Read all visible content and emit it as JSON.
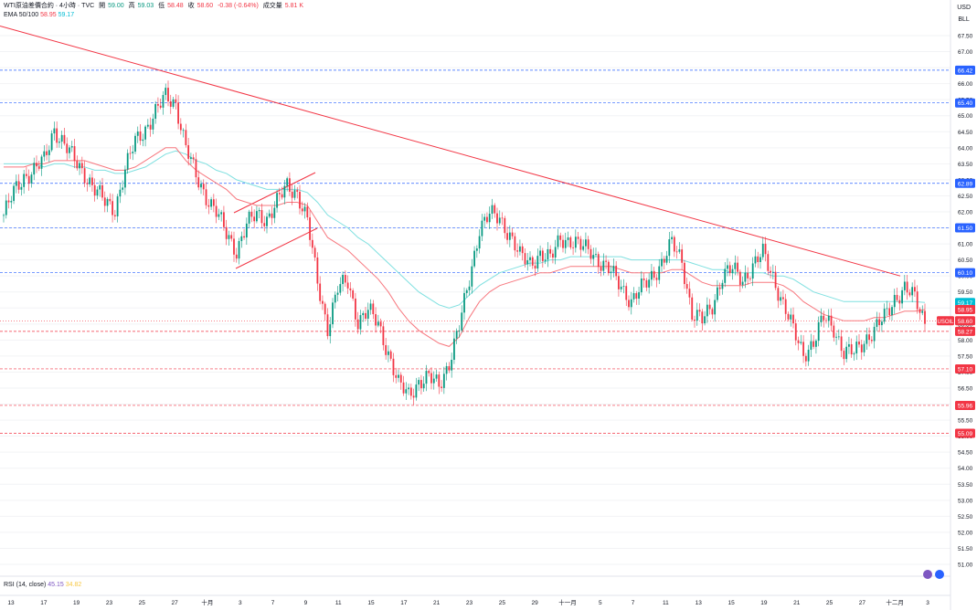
{
  "header": {
    "symbol": "WTI原油差價合約 · 4小時 · TVC",
    "open_label": "開",
    "open_value": "59.00",
    "high_label": "高",
    "high_value": "59.03",
    "low_label": "低",
    "low_value": "58.48",
    "close_label": "收",
    "close_value": "58.60",
    "change": "-0.38 (-0.64%)",
    "volume_label": "成交量",
    "volume_value": "5.81 K"
  },
  "indicator": {
    "name": "EMA 50/100",
    "ema50": "58.95",
    "ema100": "59.17"
  },
  "rsi": {
    "name": "RSI (14, close)",
    "value": "45.15",
    "ma": "34.82"
  },
  "currency": {
    "code": "USD",
    "unit": "BLL"
  },
  "colors": {
    "up": "#089981",
    "down": "#f23645",
    "ema50": "#f7787f",
    "ema100": "#7fe0e0",
    "trendline": "#f23645",
    "blue_level": "#2962ff",
    "red_level": "#f23645",
    "channel": "#f23645",
    "grid": "#f2f3f5",
    "axis_text": "#131722"
  },
  "chart_data": {
    "type": "candlestick",
    "y_axis": {
      "min": 51.0,
      "max": 67.5,
      "step": 0.5,
      "side": "right"
    },
    "x_ticks": [
      "13",
      "17",
      "19",
      "23",
      "25",
      "27",
      "十月",
      "3",
      "7",
      "9",
      "11",
      "15",
      "17",
      "21",
      "23",
      "25",
      "29",
      "十一月",
      "5",
      "7",
      "11",
      "13",
      "15",
      "19",
      "21",
      "25",
      "27",
      "十二月",
      "3"
    ],
    "levels": [
      {
        "value": "66.42",
        "style": "blue-dashed"
      },
      {
        "value": "65.40",
        "style": "blue-dashed"
      },
      {
        "value": "62.89",
        "style": "blue-dashed"
      },
      {
        "value": "61.50",
        "style": "blue-dashed"
      },
      {
        "value": "60.10",
        "style": "blue-dashed"
      },
      {
        "value": "58.27",
        "style": "red-dashed"
      },
      {
        "value": "57.10",
        "style": "red-dashed"
      },
      {
        "value": "55.96",
        "style": "red-dashed"
      },
      {
        "value": "55.09",
        "style": "red-dashed"
      }
    ],
    "price_tags": [
      {
        "label": "59.17",
        "value": 59.17,
        "color": "#00bcd4"
      },
      {
        "label": "58.95",
        "value": 58.95,
        "color": "#f23645"
      },
      {
        "label": "USOIL",
        "value": 58.6,
        "color": "#f23645"
      },
      {
        "label": "58.60",
        "value": 58.6,
        "color": "#f23645"
      }
    ],
    "trendline": {
      "from": 67.8,
      "to": 60.0
    },
    "last_price": 58.6,
    "closes": [
      61.9,
      62.6,
      63.1,
      63.3,
      63.6,
      64.6,
      64.1,
      63.6,
      63.2,
      62.7,
      62.3,
      62.1,
      63.3,
      64.2,
      64.6,
      65.1,
      65.6,
      65.4,
      64.0,
      63.1,
      62.5,
      62.0,
      61.3,
      60.8,
      61.6,
      61.9,
      61.8,
      62.3,
      62.8,
      62.6,
      61.7,
      59.8,
      58.4,
      59.6,
      59.8,
      58.6,
      58.9,
      58.5,
      57.6,
      56.6,
      56.3,
      56.7,
      56.8,
      56.6,
      57.3,
      58.4,
      59.9,
      61.5,
      61.9,
      61.8,
      61.3,
      60.6,
      60.4,
      60.7,
      60.5,
      61.2,
      61.1,
      60.9,
      60.8,
      60.4,
      60.1,
      59.7,
      59.2,
      59.6,
      60.0,
      60.4,
      61.0,
      60.5,
      58.8,
      58.6,
      59.1,
      60.0,
      60.2,
      59.9,
      60.3,
      60.7,
      60.0,
      59.1,
      58.3,
      57.6,
      57.9,
      58.7,
      58.4,
      57.6,
      57.6,
      58.0,
      58.3,
      58.7,
      59.3,
      59.6,
      59.3,
      58.6
    ],
    "ema50": [
      63.4,
      63.4,
      63.4,
      63.5,
      63.5,
      63.6,
      63.6,
      63.6,
      63.6,
      63.5,
      63.4,
      63.3,
      63.3,
      63.4,
      63.6,
      63.8,
      64.0,
      64.0,
      63.6,
      63.3,
      63.1,
      62.9,
      62.7,
      62.4,
      62.3,
      62.2,
      62.2,
      62.2,
      62.3,
      62.3,
      62.2,
      61.7,
      61.2,
      61.0,
      60.8,
      60.5,
      60.2,
      59.9,
      59.5,
      59.0,
      58.6,
      58.3,
      58.1,
      57.9,
      57.8,
      58.1,
      58.7,
      59.2,
      59.5,
      59.7,
      59.8,
      59.9,
      60.0,
      60.1,
      60.1,
      60.2,
      60.3,
      60.3,
      60.3,
      60.3,
      60.3,
      60.2,
      60.1,
      60.1,
      60.1,
      60.1,
      60.2,
      60.2,
      60.0,
      59.8,
      59.7,
      59.7,
      59.7,
      59.7,
      59.8,
      59.8,
      59.8,
      59.7,
      59.5,
      59.2,
      59.0,
      58.8,
      58.7,
      58.6,
      58.6,
      58.6,
      58.7,
      58.7,
      58.8,
      58.9,
      58.9,
      58.95
    ],
    "ema100": [
      63.5,
      63.5,
      63.5,
      63.5,
      63.4,
      63.5,
      63.5,
      63.4,
      63.4,
      63.3,
      63.3,
      63.2,
      63.2,
      63.3,
      63.4,
      63.6,
      63.8,
      63.9,
      63.8,
      63.6,
      63.5,
      63.3,
      63.2,
      63.0,
      62.9,
      62.8,
      62.7,
      62.7,
      62.7,
      62.7,
      62.6,
      62.3,
      61.9,
      61.7,
      61.5,
      61.2,
      61.0,
      60.7,
      60.4,
      60.1,
      59.8,
      59.5,
      59.3,
      59.1,
      59.0,
      59.1,
      59.4,
      59.7,
      59.9,
      60.1,
      60.2,
      60.3,
      60.4,
      60.4,
      60.5,
      60.5,
      60.6,
      60.6,
      60.6,
      60.6,
      60.6,
      60.6,
      60.5,
      60.5,
      60.5,
      60.5,
      60.5,
      60.5,
      60.4,
      60.3,
      60.2,
      60.2,
      60.1,
      60.1,
      60.1,
      60.1,
      60.0,
      60.0,
      59.9,
      59.7,
      59.5,
      59.4,
      59.3,
      59.2,
      59.2,
      59.2,
      59.2,
      59.2,
      59.2,
      59.2,
      59.2,
      59.17
    ]
  }
}
